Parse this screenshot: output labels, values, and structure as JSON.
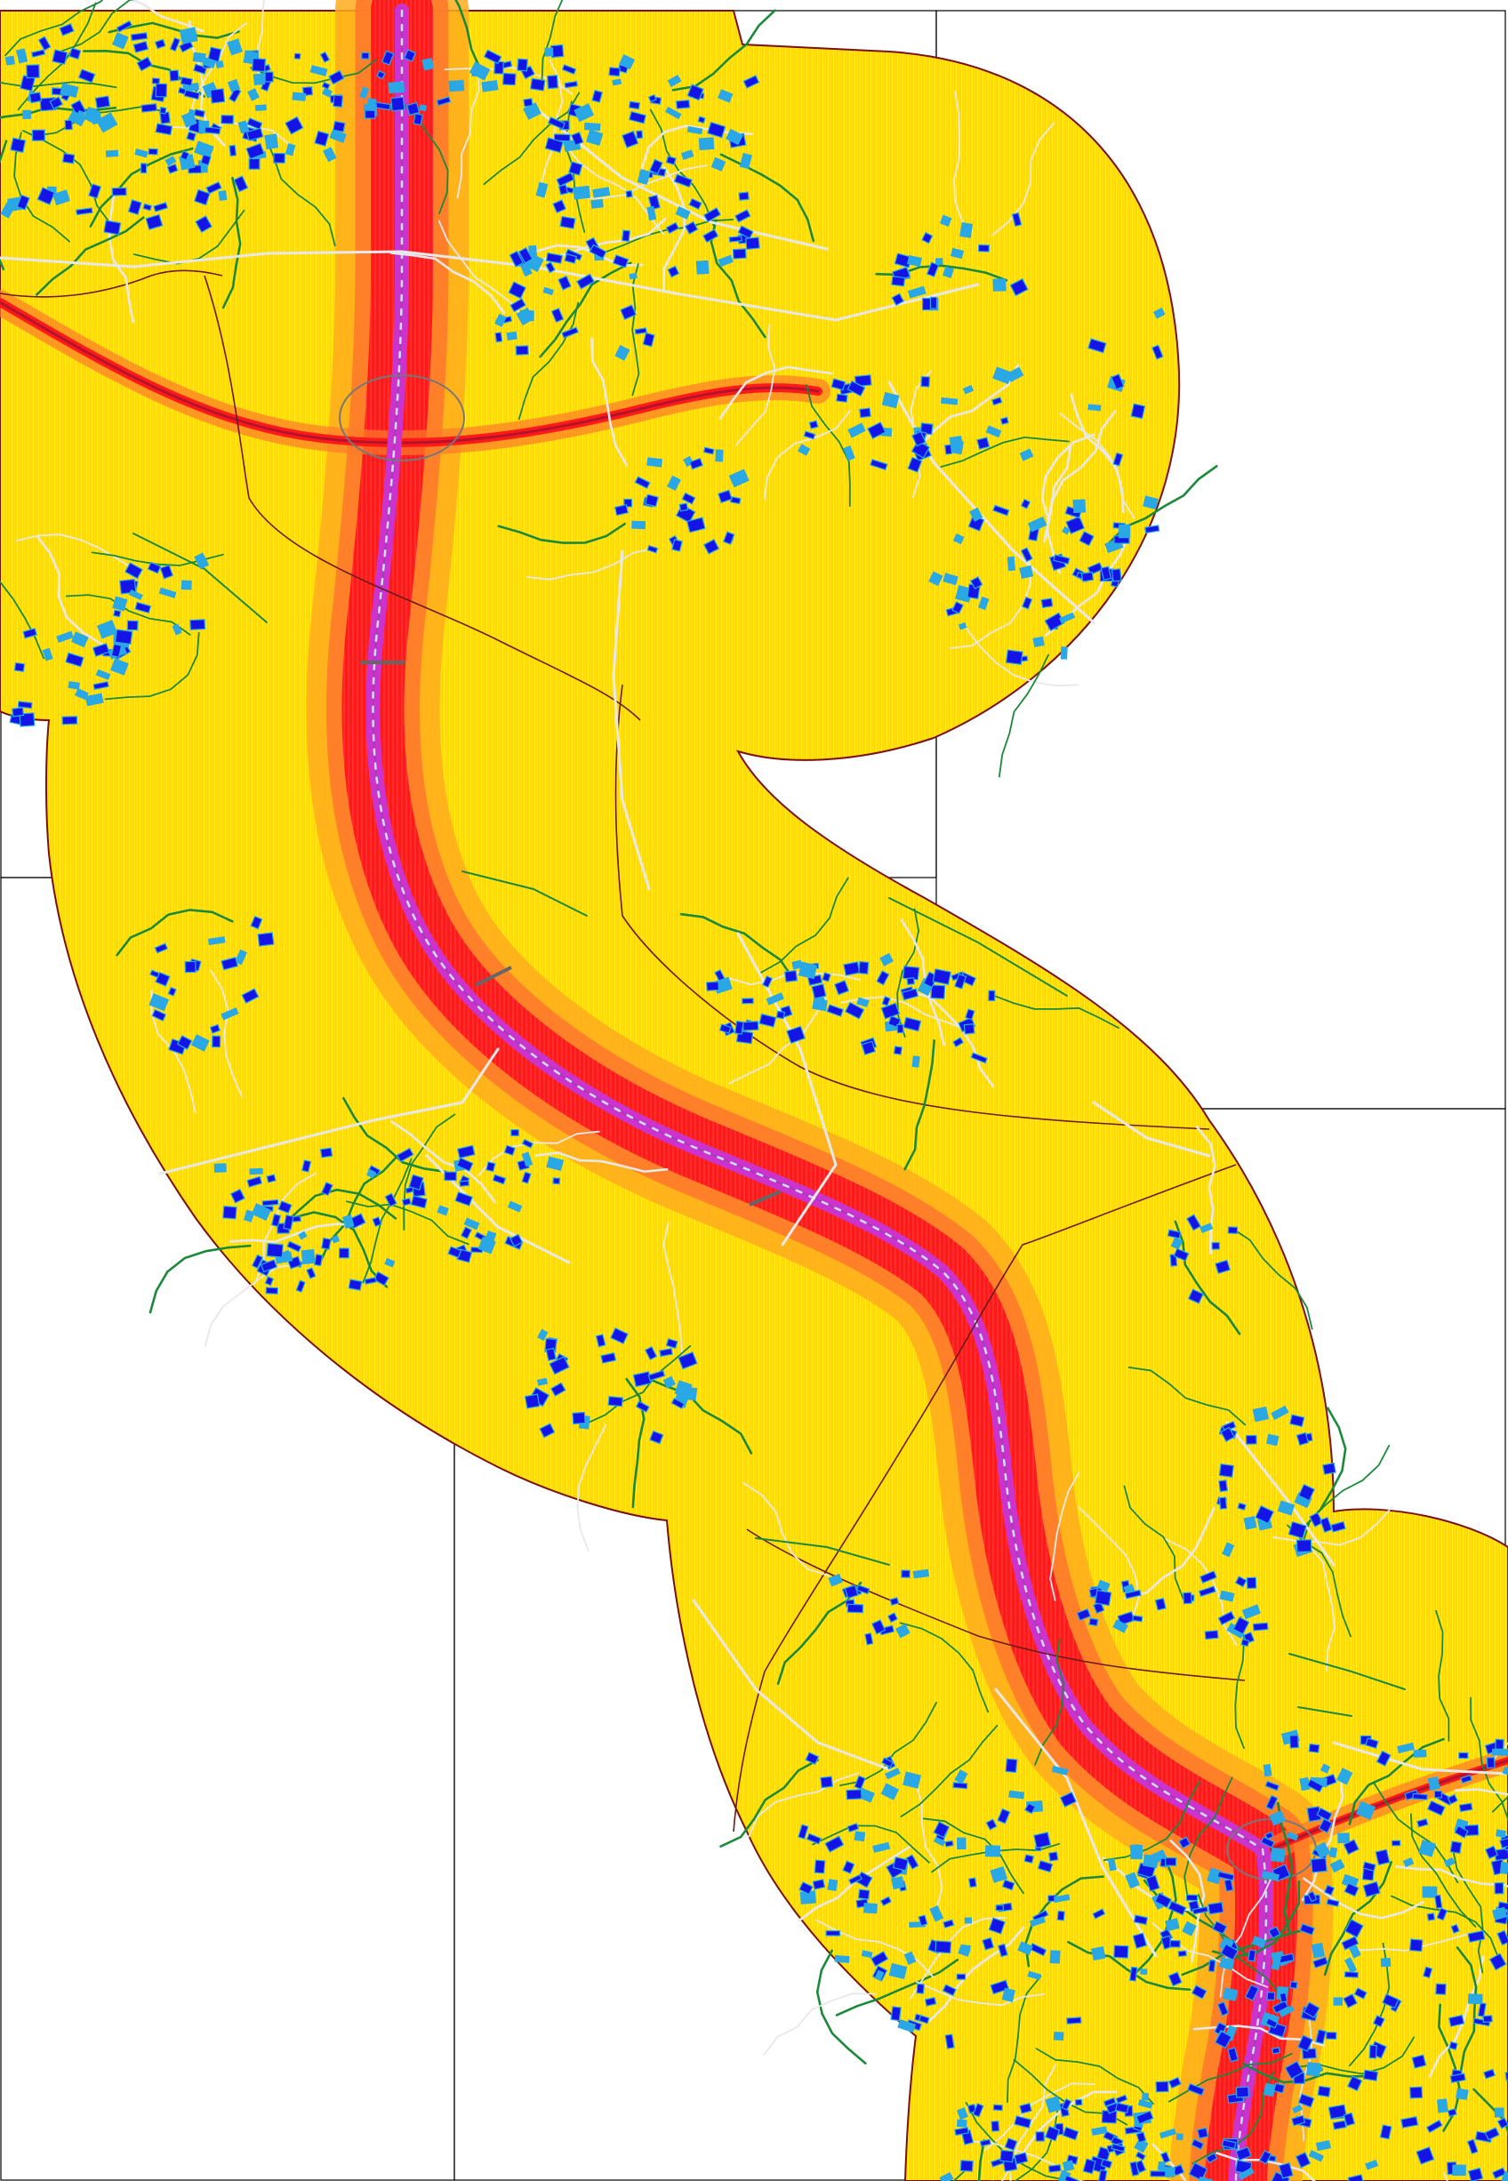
{
  "map": {
    "colors": {
      "background": "#ffffff",
      "sheet_border": "#000000",
      "zone_fill": "#ffd900",
      "zone_texture": "#fff3a0",
      "zone_boundary": "#7a1010",
      "noise_band_outer": "#ffab1c",
      "noise_band_mid": "#ff7a2a",
      "noise_band_inner": "#ff1a1a",
      "motorway_core": "#cc33cc",
      "motorway_centerline": "#c8e0ff",
      "railway": "#b5132b",
      "building_primary": "#1414e6",
      "building_secondary": "#2aa8e6",
      "road_minor": "#1a8a3a",
      "road_local": "#e8e8e8",
      "admin_boundary": "#6b1a1a"
    },
    "layers": [
      "sheet-grid",
      "study-zone",
      "noise-bands",
      "motorway",
      "railway",
      "local-roads",
      "buildings"
    ],
    "street_labels": [
      "",
      "",
      "",
      "",
      "",
      "",
      "",
      "",
      "",
      "",
      "",
      "",
      "",
      "",
      "",
      "",
      "",
      "",
      "",
      ""
    ]
  }
}
